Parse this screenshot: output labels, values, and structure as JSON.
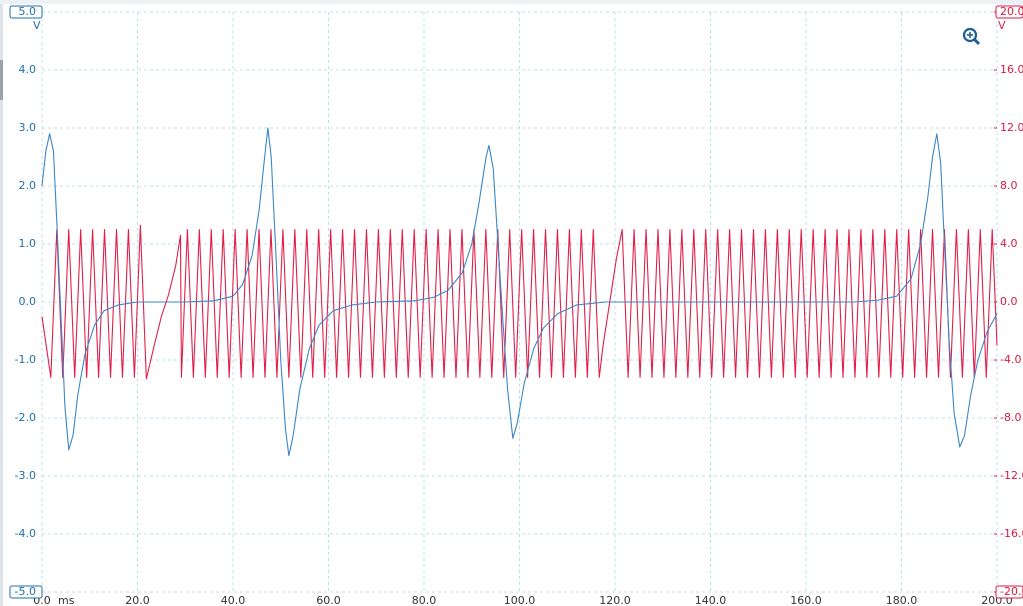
{
  "chart_data": {
    "type": "line",
    "x_unit": "ms",
    "y_unit": "V",
    "y2_unit": "V",
    "xlim": [
      0,
      200
    ],
    "xticks": [
      {
        "value": 0,
        "label": "0.0"
      },
      {
        "value": 20,
        "label": "20.0"
      },
      {
        "value": 40,
        "label": "40.0"
      },
      {
        "value": 60,
        "label": "60.0"
      },
      {
        "value": 80,
        "label": "80.0"
      },
      {
        "value": 100,
        "label": "100.0"
      },
      {
        "value": 120,
        "label": "120.0"
      },
      {
        "value": 140,
        "label": "140.0"
      },
      {
        "value": 160,
        "label": "160.0"
      },
      {
        "value": 180,
        "label": "180.0"
      },
      {
        "value": 200,
        "label": "200.0"
      }
    ],
    "ylim": [
      -5,
      5
    ],
    "yticks": [
      {
        "value": -5,
        "label": "-5.0"
      },
      {
        "value": -4,
        "label": "-4.0"
      },
      {
        "value": -3,
        "label": "-3.0"
      },
      {
        "value": -2,
        "label": "-2.0"
      },
      {
        "value": -1,
        "label": "-1.0"
      },
      {
        "value": 0,
        "label": "0.0"
      },
      {
        "value": 1,
        "label": "1.0"
      },
      {
        "value": 2,
        "label": "2.0"
      },
      {
        "value": 3,
        "label": "3.0"
      },
      {
        "value": 4,
        "label": "4.0"
      },
      {
        "value": 5,
        "label": "5.0"
      }
    ],
    "y2lim": [
      -20,
      20
    ],
    "y2ticks": [
      {
        "value": -20,
        "label": "-20.0"
      },
      {
        "value": -16,
        "label": "-16.0"
      },
      {
        "value": -12,
        "label": "-12.0"
      },
      {
        "value": -8,
        "label": "-8.0"
      },
      {
        "value": -4,
        "label": "-4.0"
      },
      {
        "value": 0,
        "label": "0.0"
      },
      {
        "value": 4,
        "label": "4.0"
      },
      {
        "value": 8,
        "label": "8.0"
      },
      {
        "value": 12,
        "label": "12.0"
      },
      {
        "value": 16,
        "label": "16.0"
      },
      {
        "value": 20,
        "label": "20.0"
      }
    ],
    "grid": true,
    "y_color": "#1f6fae",
    "y2_color": "#d81b45",
    "series": [
      {
        "color": "#e0204a",
        "axis": "y2",
        "x": [
          0,
          1.85,
          3.1,
          4.35,
          5.6,
          6.85,
          8.1,
          9.35,
          10.6,
          11.85,
          13.1,
          14.35,
          15.6,
          16.85,
          18.1,
          19.35,
          20.6,
          21.85,
          23.5,
          25,
          26.5,
          28,
          29.0,
          29.2,
          30.45,
          31.7,
          32.95,
          34.2,
          35.45,
          36.7,
          37.95,
          39.2,
          40.45,
          41.7,
          42.95,
          44.2,
          45.45,
          46.7,
          47.95,
          49.2,
          50.45,
          51.7,
          52.95,
          54.2,
          55.45,
          56.7,
          57.95,
          59.2,
          60.45,
          61.7,
          62.95,
          64.2,
          65.45,
          66.7,
          67.95,
          69.2,
          70.45,
          71.7,
          72.95,
          74.2,
          75.45,
          76.7,
          77.95,
          79.2,
          80.45,
          81.7,
          82.95,
          84.2,
          85.45,
          86.7,
          87.95,
          89.2,
          90.45,
          91.7,
          92.95,
          94.2,
          95.45,
          96.7,
          97.95,
          99.2,
          100.45,
          101.7,
          102.95,
          104.2,
          105.45,
          106.7,
          107.95,
          109.2,
          110.45,
          111.7,
          112.95,
          114.2,
          115.45,
          116.7,
          117.5,
          118.9,
          120.3,
          121.5,
          122.75,
          124.0,
          125.25,
          126.5,
          127.75,
          129.0,
          130.25,
          131.5,
          132.75,
          134.0,
          135.25,
          136.5,
          137.75,
          139.0,
          140.25,
          141.5,
          142.75,
          144.0,
          145.25,
          146.5,
          147.75,
          149.0,
          150.25,
          151.5,
          152.75,
          154.0,
          155.25,
          156.5,
          157.75,
          159.0,
          160.25,
          161.5,
          162.75,
          164.0,
          165.25,
          166.5,
          167.75,
          169.0,
          170.25,
          171.5,
          172.75,
          174.0,
          175.25,
          176.5,
          177.75,
          179.0,
          180.25,
          181.5,
          182.75,
          184.0,
          185.25,
          186.5,
          187.75,
          189.0,
          190.25,
          191.5,
          192.75,
          194.0,
          195.25,
          196.5,
          197.75,
          199.0,
          200
        ],
        "values": [
          -1.0,
          -5.2,
          5.0,
          -5.2,
          5.0,
          -5.2,
          5.0,
          -5.2,
          5.0,
          -5.2,
          5.0,
          -5.2,
          5.0,
          -5.2,
          5.0,
          -5.2,
          5.3,
          -5.3,
          -3.0,
          -1.0,
          0.5,
          2.5,
          4.6,
          -5.2,
          5.0,
          -5.2,
          5.0,
          -5.2,
          5.0,
          -5.2,
          5.0,
          -5.2,
          5.0,
          -5.2,
          5.0,
          -5.2,
          5.0,
          -5.2,
          5.0,
          -5.2,
          5.0,
          -5.2,
          5.0,
          -5.2,
          5.0,
          -5.2,
          5.0,
          -5.2,
          5.0,
          -5.2,
          5.0,
          -5.2,
          5.0,
          -5.2,
          5.0,
          -5.2,
          5.0,
          -5.2,
          5.0,
          -5.2,
          5.0,
          -5.2,
          5.0,
          -5.2,
          5.0,
          -5.2,
          5.0,
          -5.2,
          5.0,
          -5.2,
          5.0,
          -5.2,
          5.0,
          -5.2,
          5.0,
          -5.2,
          5.0,
          -5.2,
          5.0,
          -5.2,
          5.0,
          -5.2,
          5.0,
          -5.2,
          5.0,
          -5.2,
          5.0,
          -5.2,
          5.0,
          -5.2,
          5.0,
          -5.2,
          5.0,
          -5.2,
          -3.0,
          0,
          3.0,
          5.0,
          -5.2,
          5.0,
          -5.2,
          5.0,
          -5.2,
          5.0,
          -5.2,
          5.0,
          -5.2,
          5.0,
          -5.2,
          5.0,
          -5.2,
          5.0,
          -5.2,
          5.0,
          -5.2,
          5.0,
          -5.2,
          5.0,
          -5.2,
          5.0,
          -5.2,
          5.0,
          -5.2,
          5.0,
          -5.2,
          5.0,
          -5.2,
          5.0,
          -5.2,
          5.0,
          -5.2,
          5.0,
          -5.2,
          5.0,
          -5.2,
          5.0,
          -5.2,
          5.0,
          -5.2,
          5.0,
          -5.2,
          5.0,
          -5.2,
          5.0,
          -5.2,
          5.0,
          -5.2,
          5.0,
          -5.2,
          5.0,
          -5.2,
          5.0,
          -5.2,
          5.0,
          -5.2,
          5.0,
          -5.2,
          5.0,
          -5.2,
          5.0,
          -3.0
        ]
      },
      {
        "color": "#3a87c8",
        "x": [
          0,
          0.8,
          1.6,
          2.4,
          3.2,
          4.0,
          4.8,
          5.6,
          6.5,
          7.5,
          9,
          11,
          13,
          16,
          20,
          30,
          36,
          40,
          42,
          44,
          45.5,
          46.5,
          47.3,
          48.0,
          49.0,
          50.0,
          51.0,
          51.7,
          52.6,
          54,
          56,
          58,
          61,
          65,
          70,
          78,
          82,
          85,
          88,
          90,
          91.5,
          93,
          93.6,
          94.5,
          95.5,
          96.5,
          97.5,
          98.6,
          99.5,
          101,
          103,
          105,
          108,
          112,
          118,
          170,
          175,
          179,
          182,
          184,
          185.5,
          186.5,
          187.4,
          188.2,
          189,
          190,
          191,
          192.2,
          193.2,
          194.5,
          196,
          198,
          200
        ],
        "values": [
          2.0,
          2.6,
          2.9,
          2.6,
          1.2,
          -0.3,
          -1.8,
          -2.55,
          -2.3,
          -1.6,
          -0.9,
          -0.4,
          -0.15,
          -0.05,
          0,
          0,
          0.02,
          0.1,
          0.3,
          0.8,
          1.6,
          2.4,
          3.0,
          2.5,
          0.8,
          -1.0,
          -2.2,
          -2.65,
          -2.3,
          -1.5,
          -0.8,
          -0.4,
          -0.15,
          -0.05,
          0,
          0.02,
          0.08,
          0.2,
          0.5,
          1.0,
          1.7,
          2.5,
          2.7,
          2.3,
          1.0,
          -0.3,
          -1.5,
          -2.35,
          -2.1,
          -1.4,
          -0.8,
          -0.45,
          -0.2,
          -0.05,
          0,
          0,
          0.03,
          0.1,
          0.4,
          1.0,
          1.8,
          2.5,
          2.9,
          2.4,
          1.0,
          -0.7,
          -1.9,
          -2.5,
          -2.3,
          -1.6,
          -1.0,
          -0.5,
          -0.2
        ]
      }
    ]
  }
}
